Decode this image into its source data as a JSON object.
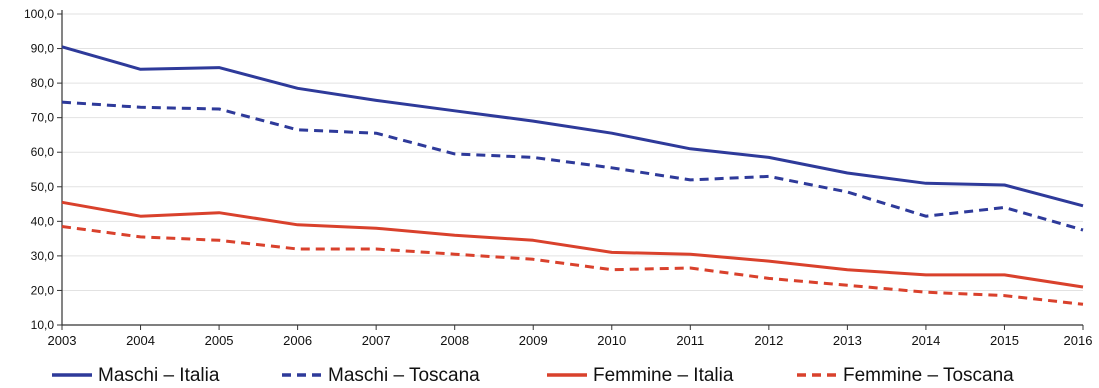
{
  "chart_data": {
    "type": "line",
    "title": "",
    "xlabel": "",
    "ylabel": "",
    "x": [
      "2003",
      "2004",
      "2005",
      "2006",
      "2007",
      "2008",
      "2009",
      "2010",
      "2011",
      "2012",
      "2013",
      "2014",
      "2015",
      "2016"
    ],
    "ylim": [
      10,
      100
    ],
    "yticks": [
      "10,0",
      "20,0",
      "30,0",
      "40,0",
      "50,0",
      "60,0",
      "70,0",
      "80,0",
      "90,0",
      "100,0"
    ],
    "grid": "horizontal",
    "legend_position": "bottom",
    "series": [
      {
        "name": "Maschi – Italia",
        "color": "#2e3a9a",
        "style": "solid",
        "values": [
          90.5,
          84.0,
          84.5,
          78.5,
          75.0,
          72.0,
          69.0,
          65.5,
          61.0,
          58.5,
          54.0,
          51.0,
          50.5,
          44.5
        ]
      },
      {
        "name": "Maschi – Toscana",
        "color": "#2e3a9a",
        "style": "dashed",
        "values": [
          74.5,
          73.0,
          72.5,
          66.5,
          65.5,
          59.5,
          58.5,
          55.5,
          52.0,
          53.0,
          48.5,
          41.5,
          44.0,
          37.5
        ]
      },
      {
        "name": "Femmine – Italia",
        "color": "#d9412c",
        "style": "solid",
        "values": [
          45.5,
          41.5,
          42.5,
          39.0,
          38.0,
          36.0,
          34.5,
          31.0,
          30.5,
          28.5,
          26.0,
          24.5,
          24.5,
          21.0
        ]
      },
      {
        "name": "Femmine – Toscana",
        "color": "#d9412c",
        "style": "dashed",
        "values": [
          38.5,
          35.5,
          34.5,
          32.0,
          32.0,
          30.5,
          29.0,
          26.0,
          26.5,
          23.5,
          21.5,
          19.5,
          18.5,
          16.0
        ]
      }
    ]
  }
}
